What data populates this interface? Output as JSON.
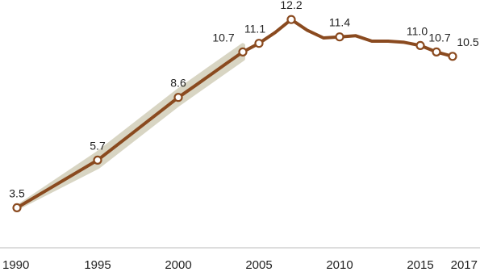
{
  "chart_data": {
    "type": "line",
    "title": "",
    "xlabel": "",
    "ylabel": "",
    "xlim": [
      1990,
      2017
    ],
    "ylim": [
      0,
      13
    ],
    "grid": false,
    "x_ticks": [
      1990,
      1995,
      2000,
      2005,
      2010,
      2015,
      2017
    ],
    "x_tick_labels": [
      "1990",
      "1995",
      "2000",
      "2005",
      "2010",
      "2015",
      "2017"
    ],
    "colors": {
      "line": "#8a4a1f",
      "band": "#d8d5c3",
      "axis": "#bbbbbb"
    },
    "series": [
      {
        "values": [
          {
            "x": 1990,
            "y": 3.5
          },
          {
            "x": 1991,
            "y": 3.94
          },
          {
            "x": 1992,
            "y": 4.38
          },
          {
            "x": 1993,
            "y": 4.82
          },
          {
            "x": 1994,
            "y": 5.26
          },
          {
            "x": 1995,
            "y": 5.7
          },
          {
            "x": 1996,
            "y": 6.28
          },
          {
            "x": 1997,
            "y": 6.86
          },
          {
            "x": 1998,
            "y": 7.44
          },
          {
            "x": 1999,
            "y": 8.02
          },
          {
            "x": 2000,
            "y": 8.6
          },
          {
            "x": 2001,
            "y": 9.12
          },
          {
            "x": 2002,
            "y": 9.65
          },
          {
            "x": 2003,
            "y": 10.18
          },
          {
            "x": 2004,
            "y": 10.7
          },
          {
            "x": 2005,
            "y": 11.1
          },
          {
            "x": 2006,
            "y": 11.6
          },
          {
            "x": 2007,
            "y": 12.2
          },
          {
            "x": 2008,
            "y": 11.7
          },
          {
            "x": 2009,
            "y": 11.35
          },
          {
            "x": 2010,
            "y": 11.4
          },
          {
            "x": 2011,
            "y": 11.45
          },
          {
            "x": 2012,
            "y": 11.2
          },
          {
            "x": 2013,
            "y": 11.2
          },
          {
            "x": 2014,
            "y": 11.15
          },
          {
            "x": 2015,
            "y": 11.0
          },
          {
            "x": 2016,
            "y": 10.7
          },
          {
            "x": 2017,
            "y": 10.5
          }
        ]
      }
    ],
    "uncertainty_band": [
      {
        "x": 1990,
        "lo": 3.5,
        "hi": 3.5
      },
      {
        "x": 1995,
        "lo": 5.4,
        "hi": 6.0
      },
      {
        "x": 2000,
        "lo": 8.3,
        "hi": 8.9
      },
      {
        "x": 2004,
        "lo": 10.4,
        "hi": 11.0
      }
    ],
    "markers": [
      {
        "x": 1990,
        "y": 3.5,
        "label": "3.5"
      },
      {
        "x": 1995,
        "y": 5.7,
        "label": "5.7"
      },
      {
        "x": 2000,
        "y": 8.6,
        "label": "8.6"
      },
      {
        "x": 2004,
        "y": 10.7,
        "label": "10.7"
      },
      {
        "x": 2005,
        "y": 11.1,
        "label": "11.1"
      },
      {
        "x": 2007,
        "y": 12.2,
        "label": "12.2"
      },
      {
        "x": 2010,
        "y": 11.4,
        "label": "11.4"
      },
      {
        "x": 2015,
        "y": 11.0,
        "label": "11.0"
      },
      {
        "x": 2016,
        "y": 10.7,
        "label": "10.7"
      },
      {
        "x": 2017,
        "y": 10.5,
        "label": "10.5"
      }
    ]
  }
}
